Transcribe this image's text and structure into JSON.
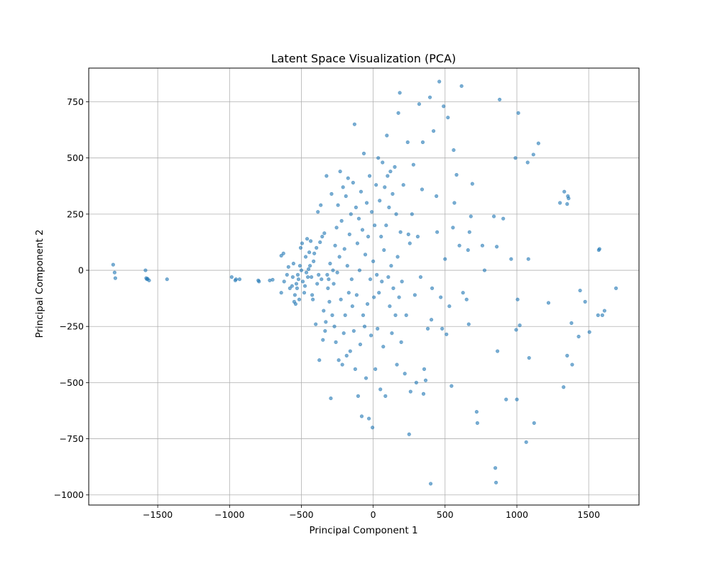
{
  "chart_data": {
    "type": "scatter",
    "title": "Latent Space Visualization (PCA)",
    "xlabel": "Principal Component 1",
    "ylabel": "Principal Component 2",
    "xlim": [
      -1980,
      1850
    ],
    "ylim": [
      -1045,
      900
    ],
    "xticks": [
      -1500,
      -1000,
      -500,
      0,
      500,
      1000,
      1500
    ],
    "yticks": [
      -1000,
      -750,
      -500,
      -250,
      0,
      250,
      500,
      750
    ],
    "xtick_labels": [
      "−1500",
      "−1000",
      "−500",
      "0",
      "500",
      "1000",
      "1500"
    ],
    "ytick_labels": [
      "−1000",
      "−750",
      "−500",
      "−250",
      "0",
      "250",
      "500",
      "750"
    ],
    "grid": true,
    "marker_color": "#1f77b4",
    "marker_alpha": 0.6,
    "series": [
      {
        "points": [
          [
            -1810,
            25
          ],
          [
            -1800,
            -10
          ],
          [
            -1795,
            -35
          ],
          [
            -1585,
            0
          ],
          [
            -1580,
            -35
          ],
          [
            -1575,
            -40
          ],
          [
            -1570,
            -38
          ],
          [
            -1560,
            -45
          ],
          [
            -1435,
            -40
          ],
          [
            -985,
            -30
          ],
          [
            -960,
            -45
          ],
          [
            -955,
            -40
          ],
          [
            -930,
            -40
          ],
          [
            -800,
            -45
          ],
          [
            -795,
            -50
          ],
          [
            -720,
            -45
          ],
          [
            -700,
            -42
          ],
          [
            -640,
            -100
          ],
          [
            -640,
            65
          ],
          [
            -625,
            75
          ],
          [
            -620,
            -50
          ],
          [
            -600,
            -20
          ],
          [
            -590,
            15
          ],
          [
            -580,
            -80
          ],
          [
            -565,
            -70
          ],
          [
            -560,
            -30
          ],
          [
            -555,
            30
          ],
          [
            -550,
            -140
          ],
          [
            -545,
            -110
          ],
          [
            -540,
            -150
          ],
          [
            -535,
            -60
          ],
          [
            -530,
            -80
          ],
          [
            -525,
            -20
          ],
          [
            -520,
            -40
          ],
          [
            -515,
            -130
          ],
          [
            -510,
            20
          ],
          [
            -505,
            100
          ],
          [
            -500,
            0
          ],
          [
            -495,
            120
          ],
          [
            -490,
            -50
          ],
          [
            -480,
            -100
          ],
          [
            -475,
            -70
          ],
          [
            -470,
            60
          ],
          [
            -465,
            -10
          ],
          [
            -460,
            140
          ],
          [
            -455,
            -30
          ],
          [
            -450,
            5
          ],
          [
            -445,
            80
          ],
          [
            -440,
            20
          ],
          [
            -435,
            130
          ],
          [
            -430,
            -30
          ],
          [
            -425,
            -110
          ],
          [
            -420,
            -130
          ],
          [
            -415,
            40
          ],
          [
            -410,
            75
          ],
          [
            -400,
            -240
          ],
          [
            -395,
            100
          ],
          [
            -390,
            -60
          ],
          [
            -385,
            260
          ],
          [
            -380,
            -20
          ],
          [
            -375,
            -400
          ],
          [
            -370,
            125
          ],
          [
            -365,
            290
          ],
          [
            -360,
            -40
          ],
          [
            -355,
            150
          ],
          [
            -350,
            -310
          ],
          [
            -345,
            -180
          ],
          [
            -340,
            165
          ],
          [
            -335,
            -270
          ],
          [
            -330,
            -230
          ],
          [
            -325,
            420
          ],
          [
            -320,
            -20
          ],
          [
            -315,
            -80
          ],
          [
            -310,
            -40
          ],
          [
            -305,
            -140
          ],
          [
            -300,
            30
          ],
          [
            -295,
            -570
          ],
          [
            -290,
            340
          ],
          [
            -285,
            -200
          ],
          [
            -280,
            0
          ],
          [
            -275,
            -60
          ],
          [
            -270,
            -250
          ],
          [
            -265,
            110
          ],
          [
            -260,
            -320
          ],
          [
            -255,
            190
          ],
          [
            -250,
            -10
          ],
          [
            -245,
            290
          ],
          [
            -240,
            -400
          ],
          [
            -235,
            60
          ],
          [
            -230,
            440
          ],
          [
            -225,
            -130
          ],
          [
            -220,
            220
          ],
          [
            -215,
            -420
          ],
          [
            -210,
            370
          ],
          [
            -205,
            -280
          ],
          [
            -200,
            95
          ],
          [
            -195,
            -200
          ],
          [
            -190,
            330
          ],
          [
            -185,
            -380
          ],
          [
            -180,
            20
          ],
          [
            -175,
            410
          ],
          [
            -170,
            -100
          ],
          [
            -165,
            160
          ],
          [
            -160,
            -360
          ],
          [
            -155,
            250
          ],
          [
            -150,
            -40
          ],
          [
            -145,
            -160
          ],
          [
            -140,
            390
          ],
          [
            -135,
            -270
          ],
          [
            -130,
            650
          ],
          [
            -125,
            -440
          ],
          [
            -120,
            280
          ],
          [
            -115,
            -110
          ],
          [
            -110,
            120
          ],
          [
            -105,
            -560
          ],
          [
            -100,
            230
          ],
          [
            -95,
            0
          ],
          [
            -90,
            -330
          ],
          [
            -85,
            350
          ],
          [
            -80,
            -650
          ],
          [
            -75,
            180
          ],
          [
            -70,
            -200
          ],
          [
            -65,
            520
          ],
          [
            -60,
            -250
          ],
          [
            -55,
            70
          ],
          [
            -50,
            -480
          ],
          [
            -45,
            300
          ],
          [
            -40,
            -150
          ],
          [
            -35,
            150
          ],
          [
            -30,
            -660
          ],
          [
            -25,
            420
          ],
          [
            -20,
            -40
          ],
          [
            -15,
            -290
          ],
          [
            -10,
            260
          ],
          [
            -5,
            -700
          ],
          [
            0,
            40
          ],
          [
            5,
            -120
          ],
          [
            10,
            200
          ],
          [
            15,
            -440
          ],
          [
            20,
            380
          ],
          [
            25,
            -20
          ],
          [
            30,
            -260
          ],
          [
            35,
            500
          ],
          [
            40,
            -100
          ],
          [
            45,
            310
          ],
          [
            50,
            -530
          ],
          [
            55,
            150
          ],
          [
            60,
            -50
          ],
          [
            65,
            480
          ],
          [
            70,
            -340
          ],
          [
            75,
            90
          ],
          [
            80,
            370
          ],
          [
            85,
            -560
          ],
          [
            90,
            200
          ],
          [
            95,
            600
          ],
          [
            100,
            420
          ],
          [
            105,
            -30
          ],
          [
            110,
            280
          ],
          [
            115,
            -160
          ],
          [
            120,
            440
          ],
          [
            125,
            20
          ],
          [
            130,
            -280
          ],
          [
            135,
            340
          ],
          [
            140,
            -80
          ],
          [
            150,
            460
          ],
          [
            155,
            -200
          ],
          [
            160,
            250
          ],
          [
            165,
            -420
          ],
          [
            170,
            60
          ],
          [
            175,
            700
          ],
          [
            180,
            -120
          ],
          [
            185,
            790
          ],
          [
            190,
            170
          ],
          [
            195,
            -320
          ],
          [
            200,
            -50
          ],
          [
            210,
            380
          ],
          [
            220,
            -460
          ],
          [
            230,
            -200
          ],
          [
            240,
            570
          ],
          [
            245,
            160
          ],
          [
            250,
            -730
          ],
          [
            255,
            120
          ],
          [
            260,
            -540
          ],
          [
            270,
            250
          ],
          [
            280,
            470
          ],
          [
            290,
            -110
          ],
          [
            300,
            -500
          ],
          [
            310,
            150
          ],
          [
            320,
            740
          ],
          [
            330,
            -30
          ],
          [
            340,
            360
          ],
          [
            345,
            570
          ],
          [
            350,
            -550
          ],
          [
            355,
            -440
          ],
          [
            365,
            -490
          ],
          [
            380,
            -260
          ],
          [
            395,
            770
          ],
          [
            400,
            -950
          ],
          [
            405,
            -220
          ],
          [
            410,
            -80
          ],
          [
            420,
            620
          ],
          [
            440,
            330
          ],
          [
            445,
            170
          ],
          [
            460,
            840
          ],
          [
            470,
            -120
          ],
          [
            480,
            -260
          ],
          [
            490,
            730
          ],
          [
            500,
            50
          ],
          [
            510,
            -285
          ],
          [
            520,
            680
          ],
          [
            530,
            -160
          ],
          [
            545,
            -515
          ],
          [
            555,
            190
          ],
          [
            560,
            535
          ],
          [
            565,
            300
          ],
          [
            580,
            425
          ],
          [
            600,
            110
          ],
          [
            615,
            820
          ],
          [
            625,
            -100
          ],
          [
            650,
            -130
          ],
          [
            660,
            90
          ],
          [
            665,
            -240
          ],
          [
            670,
            170
          ],
          [
            680,
            240
          ],
          [
            690,
            385
          ],
          [
            720,
            -630
          ],
          [
            725,
            -680
          ],
          [
            760,
            110
          ],
          [
            775,
            0
          ],
          [
            840,
            240
          ],
          [
            850,
            -880
          ],
          [
            855,
            -945
          ],
          [
            860,
            105
          ],
          [
            865,
            -360
          ],
          [
            880,
            760
          ],
          [
            905,
            230
          ],
          [
            925,
            -575
          ],
          [
            960,
            50
          ],
          [
            990,
            500
          ],
          [
            995,
            -265
          ],
          [
            1000,
            -575
          ],
          [
            1005,
            -130
          ],
          [
            1010,
            700
          ],
          [
            1020,
            -245
          ],
          [
            1075,
            480
          ],
          [
            1080,
            50
          ],
          [
            1085,
            -390
          ],
          [
            1065,
            -765
          ],
          [
            1115,
            515
          ],
          [
            1120,
            -680
          ],
          [
            1150,
            565
          ],
          [
            1220,
            -145
          ],
          [
            1300,
            300
          ],
          [
            1325,
            -520
          ],
          [
            1330,
            350
          ],
          [
            1350,
            -380
          ],
          [
            1350,
            295
          ],
          [
            1355,
            330
          ],
          [
            1360,
            320
          ],
          [
            1380,
            -235
          ],
          [
            1385,
            -420
          ],
          [
            1430,
            -295
          ],
          [
            1440,
            -90
          ],
          [
            1475,
            -140
          ],
          [
            1505,
            -275
          ],
          [
            1565,
            -200
          ],
          [
            1570,
            90
          ],
          [
            1575,
            95
          ],
          [
            1595,
            -200
          ],
          [
            1610,
            -180
          ],
          [
            1690,
            -80
          ]
        ]
      }
    ]
  }
}
